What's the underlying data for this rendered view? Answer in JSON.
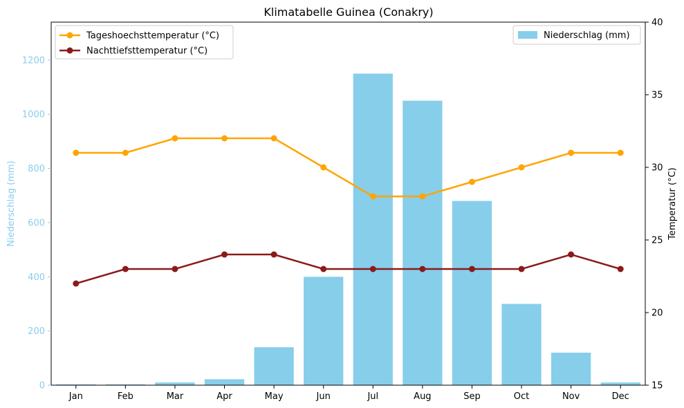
{
  "chart_data": {
    "type": "bar+line",
    "title": "Klimatabelle Guinea (Conakry)",
    "categories": [
      "Jan",
      "Feb",
      "Mar",
      "Apr",
      "May",
      "Jun",
      "Jul",
      "Aug",
      "Sep",
      "Oct",
      "Nov",
      "Dec"
    ],
    "left_axis": {
      "label": "Niederschlag (mm)",
      "ylim": [
        0,
        1340
      ],
      "ticks": [
        0,
        200,
        400,
        600,
        800,
        1000,
        1200
      ],
      "color": "#87ceeb"
    },
    "right_axis": {
      "label": "Temperatur (°C)",
      "ylim": [
        15,
        40
      ],
      "ticks": [
        15,
        20,
        25,
        30,
        35,
        40
      ],
      "color": "#000000"
    },
    "bar_series": {
      "name": "Niederschlag (mm)",
      "values": [
        3,
        3,
        10,
        22,
        140,
        400,
        1150,
        1050,
        680,
        300,
        120,
        10
      ],
      "color": "#87ceeb"
    },
    "line_series": [
      {
        "name": "Tageshoechsttemperatur (°C)",
        "values": [
          31,
          31,
          32,
          32,
          32,
          30,
          28,
          28,
          29,
          30,
          31,
          31
        ],
        "color": "#ffa500"
      },
      {
        "name": "Nachttiefsttemperatur (°C)",
        "values": [
          22,
          23,
          23,
          24,
          24,
          23,
          23,
          23,
          23,
          23,
          24,
          23
        ],
        "color": "#8b1a1a"
      }
    ],
    "legends": {
      "lines": "top-left",
      "bars": "top-right"
    },
    "grid": false
  }
}
